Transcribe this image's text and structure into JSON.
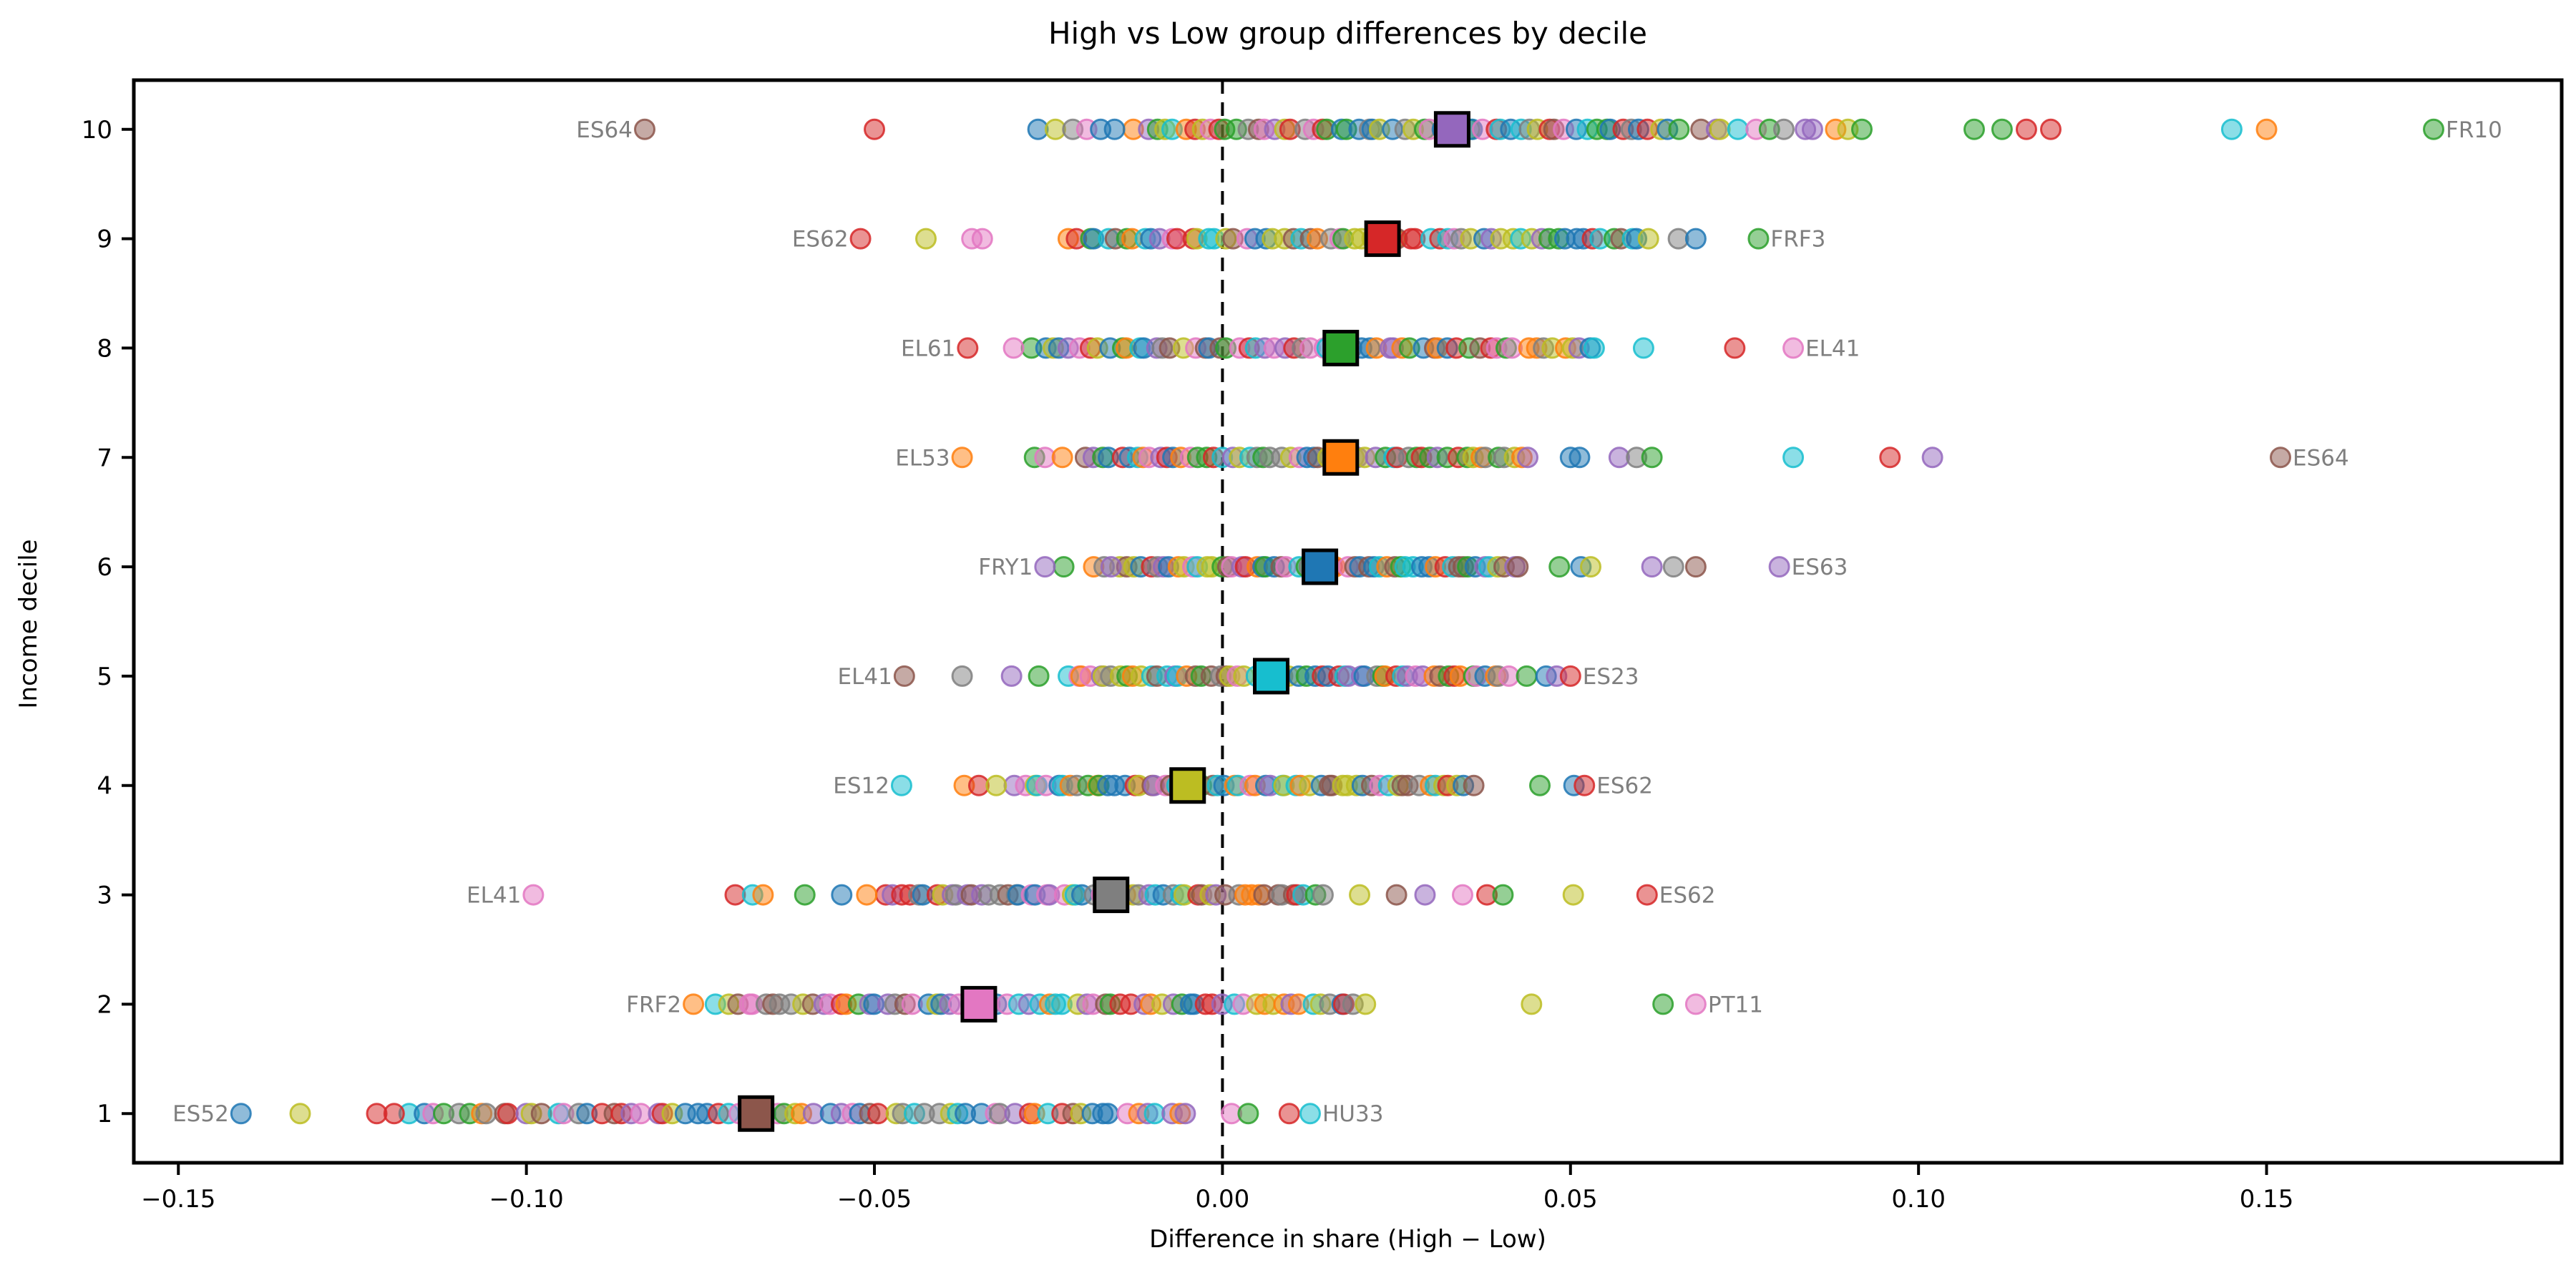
{
  "figure": {
    "title": "High vs Low group differences by decile",
    "xlabel": "Difference in share (High − Low)",
    "ylabel": "Income decile"
  },
  "chart_data": {
    "type": "scatter",
    "title": "High vs Low group differences by decile",
    "xlabel": "Difference in share (High − Low)",
    "ylabel": "Income decile",
    "grid": false,
    "legend": "none",
    "xlim": [
      -0.1564,
      0.1924
    ],
    "ylim": [
      0.55,
      10.45
    ],
    "x_ticks": {
      "values": [
        -0.15,
        -0.1,
        -0.05,
        0.0,
        0.05,
        0.1,
        0.15
      ],
      "labels": [
        "−0.15",
        "−0.10",
        "−0.05",
        "0.00",
        "0.05",
        "0.10",
        "0.15"
      ]
    },
    "y_ticks": {
      "values": [
        1,
        2,
        3,
        4,
        5,
        6,
        7,
        8,
        9,
        10
      ],
      "labels": [
        "1",
        "2",
        "3",
        "4",
        "5",
        "6",
        "7",
        "8",
        "9",
        "10"
      ]
    },
    "zero_line": {
      "x": 0.0,
      "style": "dashed",
      "color": "#000000"
    },
    "palette": [
      "#1f77b4",
      "#ff7f0e",
      "#2ca02c",
      "#d62728",
      "#9467bd",
      "#8c564b",
      "#e377c2",
      "#7f7f7f",
      "#bcbd22",
      "#17becf"
    ],
    "annotation_color": "#7f7f7f",
    "deciles": [
      {
        "decile": 10,
        "mean": {
          "x": 0.033,
          "color_index": 4
        },
        "annotations": [
          {
            "text": "ES64",
            "x": -0.083,
            "side": "left",
            "color_index": 5
          },
          {
            "text": "FR10",
            "x": 0.174,
            "side": "right",
            "color_index": 2
          }
        ],
        "points": [
          [
            -0.05,
            3
          ],
          [
            -0.0265,
            0
          ],
          [
            -0.024,
            8
          ],
          [
            -0.0215,
            7
          ],
          [
            -0.0195,
            6
          ],
          [
            -0.0175,
            0
          ],
          [
            -0.0155,
            0
          ],
          [
            0.108,
            2
          ],
          [
            0.112,
            2
          ],
          [
            0.1155,
            3
          ],
          [
            0.119,
            3
          ],
          [
            0.145,
            9
          ],
          [
            0.15,
            1
          ]
        ],
        "clusters": [
          {
            "from": -0.013,
            "to": 0.066,
            "count": 60
          },
          {
            "from": 0.067,
            "to": 0.093,
            "count": 12
          }
        ]
      },
      {
        "decile": 9,
        "mean": {
          "x": 0.023,
          "color_index": 3
        },
        "annotations": [
          {
            "text": "ES62",
            "x": -0.052,
            "side": "left",
            "color_index": 3
          },
          {
            "text": "FRF3",
            "x": 0.077,
            "side": "right",
            "color_index": 2
          }
        ],
        "points": [
          [
            -0.0426,
            8
          ],
          [
            -0.036,
            6
          ],
          [
            -0.0345,
            6
          ],
          [
            0.0655,
            7
          ],
          [
            0.068,
            0
          ]
        ],
        "clusters": [
          {
            "from": -0.0226,
            "to": 0.062,
            "count": 64
          }
        ]
      },
      {
        "decile": 8,
        "mean": {
          "x": 0.017,
          "color_index": 2
        },
        "annotations": [
          {
            "text": "EL61",
            "x": -0.0366,
            "side": "left",
            "color_index": 3
          },
          {
            "text": "EL41",
            "x": 0.082,
            "side": "right",
            "color_index": 6
          }
        ],
        "points": [
          [
            -0.03,
            6
          ],
          [
            0.0605,
            9
          ],
          [
            0.0736,
            3
          ]
        ],
        "clusters": [
          {
            "from": -0.0275,
            "to": 0.0547,
            "count": 62
          }
        ]
      },
      {
        "decile": 7,
        "mean": {
          "x": 0.017,
          "color_index": 1
        },
        "annotations": [
          {
            "text": "EL53",
            "x": -0.0374,
            "side": "left",
            "color_index": 1
          },
          {
            "text": "ES64",
            "x": 0.152,
            "side": "right",
            "color_index": 5
          }
        ],
        "points": [
          [
            -0.027,
            2
          ],
          [
            -0.0255,
            6
          ],
          [
            -0.023,
            1
          ],
          [
            0.05,
            0
          ],
          [
            0.0513,
            0
          ],
          [
            0.057,
            4
          ],
          [
            0.0595,
            7
          ],
          [
            0.0617,
            2
          ],
          [
            0.082,
            9
          ],
          [
            0.0959,
            3
          ],
          [
            0.102,
            4
          ]
        ],
        "clusters": [
          {
            "from": -0.02,
            "to": 0.0446,
            "count": 56
          }
        ]
      },
      {
        "decile": 6,
        "mean": {
          "x": 0.014,
          "color_index": 0
        },
        "annotations": [
          {
            "text": "FRY1",
            "x": -0.0255,
            "side": "left",
            "color_index": 4
          },
          {
            "text": "ES63",
            "x": 0.08,
            "side": "right",
            "color_index": 4
          }
        ],
        "points": [
          [
            -0.0228,
            2
          ],
          [
            -0.0185,
            1
          ],
          [
            -0.017,
            7
          ],
          [
            -0.016,
            4
          ],
          [
            0.0484,
            2
          ],
          [
            0.0515,
            0
          ],
          [
            0.0529,
            8
          ],
          [
            0.0617,
            4
          ],
          [
            0.0648,
            7
          ],
          [
            0.068,
            5
          ]
        ],
        "clusters": [
          {
            "from": -0.015,
            "to": 0.0432,
            "count": 58
          }
        ]
      },
      {
        "decile": 5,
        "mean": {
          "x": 0.007,
          "color_index": 9
        },
        "annotations": [
          {
            "text": "EL41",
            "x": -0.0457,
            "side": "left",
            "color_index": 5
          },
          {
            "text": "ES23",
            "x": 0.05,
            "side": "right",
            "color_index": 3
          }
        ],
        "points": [
          [
            -0.0374,
            7
          ],
          [
            -0.0303,
            4
          ],
          [
            -0.0264,
            2
          ],
          [
            0.0437,
            2
          ],
          [
            0.0465,
            0
          ],
          [
            0.048,
            4
          ]
        ],
        "clusters": [
          {
            "from": -0.0226,
            "to": 0.0415,
            "count": 60
          }
        ]
      },
      {
        "decile": 4,
        "mean": {
          "x": -0.005,
          "color_index": 8
        },
        "annotations": [
          {
            "text": "ES12",
            "x": -0.0461,
            "side": "left",
            "color_index": 9
          },
          {
            "text": "ES62",
            "x": 0.052,
            "side": "right",
            "color_index": 3
          }
        ],
        "points": [
          [
            -0.0371,
            1
          ],
          [
            -0.035,
            3
          ],
          [
            -0.0325,
            8
          ],
          [
            0.0456,
            2
          ],
          [
            0.0505,
            0
          ]
        ],
        "clusters": [
          {
            "from": -0.03,
            "to": 0.0366,
            "count": 60
          }
        ]
      },
      {
        "decile": 3,
        "mean": {
          "x": -0.016,
          "color_index": 7
        },
        "annotations": [
          {
            "text": "EL41",
            "x": -0.099,
            "side": "left",
            "color_index": 6
          },
          {
            "text": "ES62",
            "x": 0.061,
            "side": "right",
            "color_index": 3
          }
        ],
        "points": [
          [
            -0.07,
            3
          ],
          [
            -0.0675,
            9
          ],
          [
            -0.066,
            1
          ],
          [
            -0.06,
            2
          ],
          [
            -0.0547,
            0
          ],
          [
            -0.0511,
            1
          ],
          [
            0.0197,
            8
          ],
          [
            0.025,
            5
          ],
          [
            0.0291,
            4
          ],
          [
            0.0345,
            6
          ],
          [
            0.038,
            3
          ],
          [
            0.0403,
            2
          ],
          [
            0.0504,
            8
          ]
        ],
        "clusters": [
          {
            "from": -0.0488,
            "to": 0.015,
            "count": 56
          }
        ]
      },
      {
        "decile": 2,
        "mean": {
          "x": -0.035,
          "color_index": 6
        },
        "annotations": [
          {
            "text": "FRF2",
            "x": -0.076,
            "side": "left",
            "color_index": 1
          },
          {
            "text": "PT11",
            "x": 0.068,
            "side": "right",
            "color_index": 6
          }
        ],
        "points": [
          [
            0.0444,
            8
          ],
          [
            0.0633,
            2
          ]
        ],
        "clusters": [
          {
            "from": -0.0731,
            "to": 0.0214,
            "count": 70
          }
        ]
      },
      {
        "decile": 1,
        "mean": {
          "x": -0.067,
          "color_index": 5
        },
        "annotations": [
          {
            "text": "ES52",
            "x": -0.141,
            "side": "left",
            "color_index": 0
          },
          {
            "text": "HU33",
            "x": 0.0126,
            "side": "right",
            "color_index": 9
          }
        ],
        "points": [
          [
            -0.1325,
            8
          ],
          [
            -0.1215,
            3
          ],
          [
            -0.119,
            3
          ],
          [
            0.0013,
            6
          ],
          [
            0.0037,
            2
          ],
          [
            0.0096,
            3
          ]
        ],
        "clusters": [
          {
            "from": -0.117,
            "to": -0.004,
            "count": 72
          }
        ]
      }
    ]
  }
}
